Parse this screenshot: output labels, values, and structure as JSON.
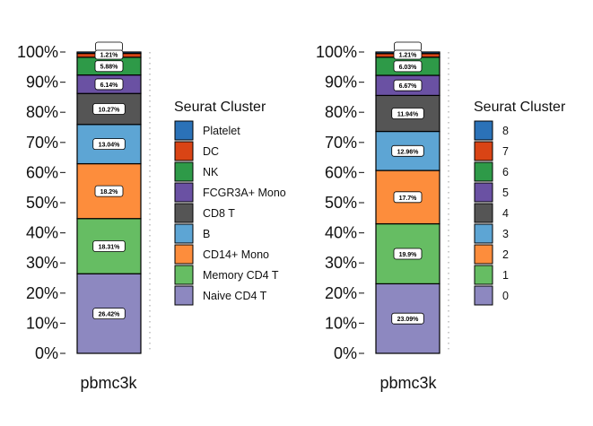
{
  "chart_data": [
    {
      "type": "bar",
      "stacked": true,
      "percent": true,
      "categories": [
        "pbmc3k"
      ],
      "yticks": [
        "0%",
        "10%",
        "20%",
        "30%",
        "40%",
        "50%",
        "60%",
        "70%",
        "80%",
        "90%",
        "100%"
      ],
      "ylim": [
        0,
        100
      ],
      "legend_title": "Seurat Cluster",
      "legend_position": "right",
      "series": [
        {
          "name": "Naive CD4 T",
          "value": 26.42,
          "label": "26.42%",
          "color": "#8D88C0"
        },
        {
          "name": "Memory CD4 T",
          "value": 18.31,
          "label": "18.31%",
          "color": "#66BD63"
        },
        {
          "name": "CD14+ Mono",
          "value": 18.2,
          "label": "18.2%",
          "color": "#FD8D3C"
        },
        {
          "name": "B",
          "value": 13.04,
          "label": "13.04%",
          "color": "#5DA5D4"
        },
        {
          "name": "CD8 T",
          "value": 10.27,
          "label": "10.27%",
          "color": "#555555"
        },
        {
          "name": "FCGR3A+ Mono",
          "value": 6.14,
          "label": "6.14%",
          "color": "#6A51A3"
        },
        {
          "name": "NK",
          "value": 5.88,
          "label": "5.88%",
          "color": "#2E9A48"
        },
        {
          "name": "DC",
          "value": 1.28,
          "label": "",
          "color": "#D94415"
        },
        {
          "name": "Platelet",
          "value": 0.46,
          "label": "",
          "color": "#2B72B8"
        }
      ],
      "extra_labels": [
        "1.21%"
      ]
    },
    {
      "type": "bar",
      "stacked": true,
      "percent": true,
      "categories": [
        "pbmc3k"
      ],
      "yticks": [
        "0%",
        "10%",
        "20%",
        "30%",
        "40%",
        "50%",
        "60%",
        "70%",
        "80%",
        "90%",
        "100%"
      ],
      "ylim": [
        0,
        100
      ],
      "legend_title": "Seurat Cluster",
      "legend_position": "right",
      "series": [
        {
          "name": "0",
          "value": 23.09,
          "label": "23.09%",
          "color": "#8D88C0"
        },
        {
          "name": "1",
          "value": 19.9,
          "label": "19.9%",
          "color": "#66BD63"
        },
        {
          "name": "2",
          "value": 17.7,
          "label": "17.7%",
          "color": "#FD8D3C"
        },
        {
          "name": "3",
          "value": 12.96,
          "label": "12.96%",
          "color": "#5DA5D4"
        },
        {
          "name": "4",
          "value": 11.94,
          "label": "11.94%",
          "color": "#555555"
        },
        {
          "name": "5",
          "value": 6.67,
          "label": "6.67%",
          "color": "#6A51A3"
        },
        {
          "name": "6",
          "value": 6.03,
          "label": "6.03%",
          "color": "#2E9A48"
        },
        {
          "name": "7",
          "value": 1.21,
          "label": "",
          "color": "#D94415"
        },
        {
          "name": "8",
          "value": 0.5,
          "label": "",
          "color": "#2B72B8"
        }
      ],
      "extra_labels": [
        "1.21%"
      ]
    }
  ]
}
